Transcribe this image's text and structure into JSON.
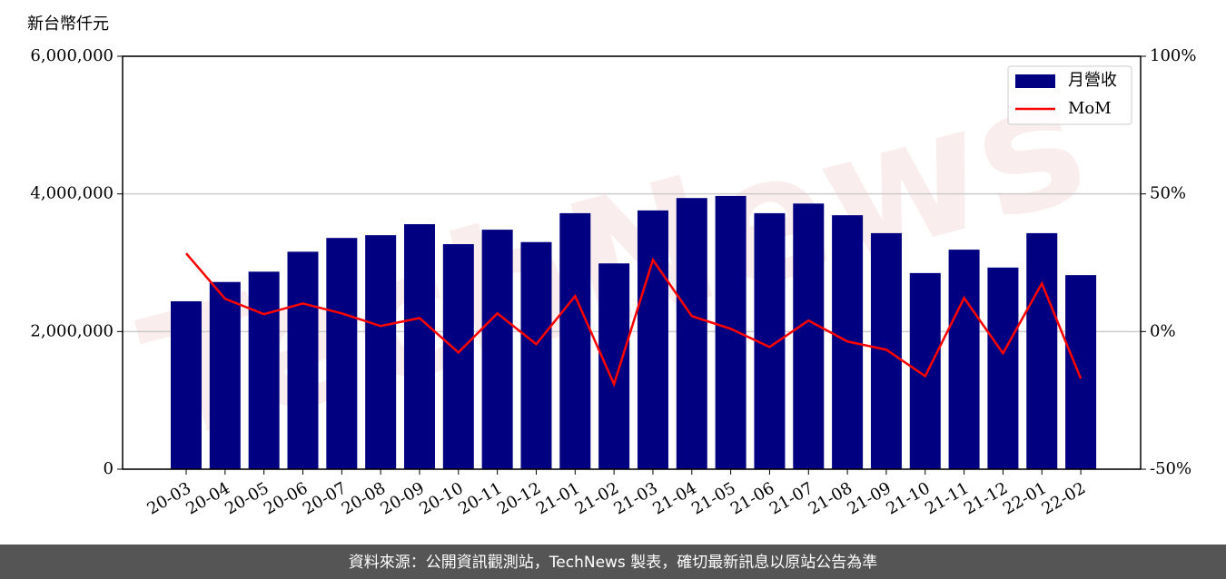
{
  "chart_data": {
    "type": "bar_line",
    "y_axis_label": "新台幣仟元",
    "watermark": "TechNews",
    "source": "資料來源：公開資訊觀測站，TechNews 製表，確切最新訊息以原站公告為準",
    "categories": [
      "20-03",
      "20-04",
      "20-05",
      "20-06",
      "20-07",
      "20-08",
      "20-09",
      "20-10",
      "20-11",
      "20-12",
      "21-01",
      "21-02",
      "21-03",
      "21-04",
      "21-05",
      "21-06",
      "21-07",
      "21-08",
      "21-09",
      "21-10",
      "21-11",
      "21-12",
      "22-01",
      "22-02"
    ],
    "series": [
      {
        "name": "月營收",
        "type": "bar",
        "color": "#000080",
        "values": [
          2440000,
          2720000,
          2870000,
          3160000,
          3360000,
          3400000,
          3560000,
          3270000,
          3480000,
          3300000,
          3720000,
          2990000,
          3760000,
          3940000,
          3970000,
          3720000,
          3860000,
          3690000,
          3430000,
          2850000,
          3190000,
          2930000,
          3430000,
          2820000
        ]
      },
      {
        "name": "MoM",
        "type": "line",
        "axis": "y2",
        "color": "#ff0000",
        "values": [
          28.4,
          11.9,
          6.3,
          10.2,
          6.6,
          2.0,
          4.9,
          -7.6,
          6.6,
          -4.6,
          12.9,
          -19.1,
          26.0,
          5.6,
          1.0,
          -5.6,
          4.0,
          -3.6,
          -6.6,
          -16.2,
          12.2,
          -7.9,
          17.5,
          -17.1
        ]
      }
    ],
    "ylim": [
      0,
      6000000
    ],
    "yticks": [
      {
        "value": 0,
        "label": "0"
      },
      {
        "value": 2000000,
        "label": "2,000,000"
      },
      {
        "value": 4000000,
        "label": "4,000,000"
      },
      {
        "value": 6000000,
        "label": "6,000,000"
      }
    ],
    "y2lim": [
      -50,
      100
    ],
    "y2ticks": [
      {
        "value": -50,
        "label": "-50%"
      },
      {
        "value": 0,
        "label": "0%"
      },
      {
        "value": 50,
        "label": "50%"
      },
      {
        "value": 100,
        "label": "100%"
      }
    ],
    "grid": true,
    "legend": "upper right"
  }
}
